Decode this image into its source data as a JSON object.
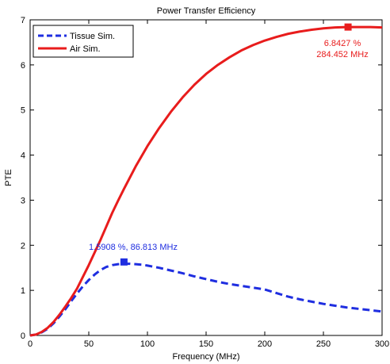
{
  "chart_data": {
    "type": "line",
    "title": "Power Transfer Efficiency",
    "xlabel": "Frequency (MHz)",
    "ylabel": "PTE",
    "xlim": [
      0,
      300
    ],
    "ylim": [
      0,
      7
    ],
    "xticks": [
      0,
      50,
      100,
      150,
      200,
      250,
      300
    ],
    "yticks": [
      0,
      1,
      2,
      3,
      4,
      5,
      6,
      7
    ],
    "grid": false,
    "legend_position": "top-left",
    "series": [
      {
        "name": "Tissue Sim.",
        "color": "#1f2ee0",
        "style": "dashed",
        "x": [
          0,
          5,
          10,
          15,
          20,
          25,
          30,
          35,
          40,
          45,
          50,
          55,
          60,
          65,
          70,
          75,
          80,
          85,
          90,
          95,
          100,
          110,
          120,
          130,
          140,
          150,
          160,
          170,
          180,
          190,
          200,
          210,
          220,
          230,
          240,
          250,
          260,
          270,
          280,
          290,
          300
        ],
        "y": [
          0,
          0.02,
          0.07,
          0.15,
          0.27,
          0.42,
          0.58,
          0.76,
          0.93,
          1.09,
          1.23,
          1.35,
          1.45,
          1.52,
          1.56,
          1.58,
          1.59,
          1.59,
          1.58,
          1.57,
          1.55,
          1.5,
          1.44,
          1.38,
          1.31,
          1.25,
          1.19,
          1.14,
          1.1,
          1.06,
          1.02,
          0.94,
          0.86,
          0.8,
          0.75,
          0.7,
          0.66,
          0.62,
          0.59,
          0.56,
          0.53
        ]
      },
      {
        "name": "Air Sim.",
        "color": "#e81c1c",
        "style": "solid",
        "x": [
          0,
          5,
          10,
          15,
          20,
          25,
          30,
          35,
          40,
          45,
          50,
          55,
          60,
          65,
          70,
          75,
          80,
          90,
          100,
          110,
          120,
          130,
          140,
          150,
          160,
          170,
          180,
          190,
          200,
          210,
          220,
          230,
          240,
          250,
          260,
          270,
          280,
          290,
          300
        ],
        "y": [
          0,
          0.02,
          0.08,
          0.17,
          0.3,
          0.46,
          0.64,
          0.83,
          1.04,
          1.3,
          1.56,
          1.84,
          2.12,
          2.42,
          2.72,
          2.99,
          3.25,
          3.75,
          4.2,
          4.6,
          4.96,
          5.28,
          5.56,
          5.8,
          6.0,
          6.17,
          6.32,
          6.44,
          6.54,
          6.62,
          6.69,
          6.74,
          6.78,
          6.81,
          6.83,
          6.84,
          6.84,
          6.84,
          6.83
        ]
      }
    ],
    "annotations": [
      {
        "series": "Tissue Sim.",
        "x": 80,
        "y": 1.63,
        "text": "1.5908 %, 86.813 MHz",
        "color": "#1f2ee0"
      },
      {
        "series": "Air Sim.",
        "x": 271,
        "y": 6.84,
        "text_line1": "6.8427 %",
        "text_line2": "284.452 MHz",
        "color": "#e81c1c"
      }
    ]
  }
}
